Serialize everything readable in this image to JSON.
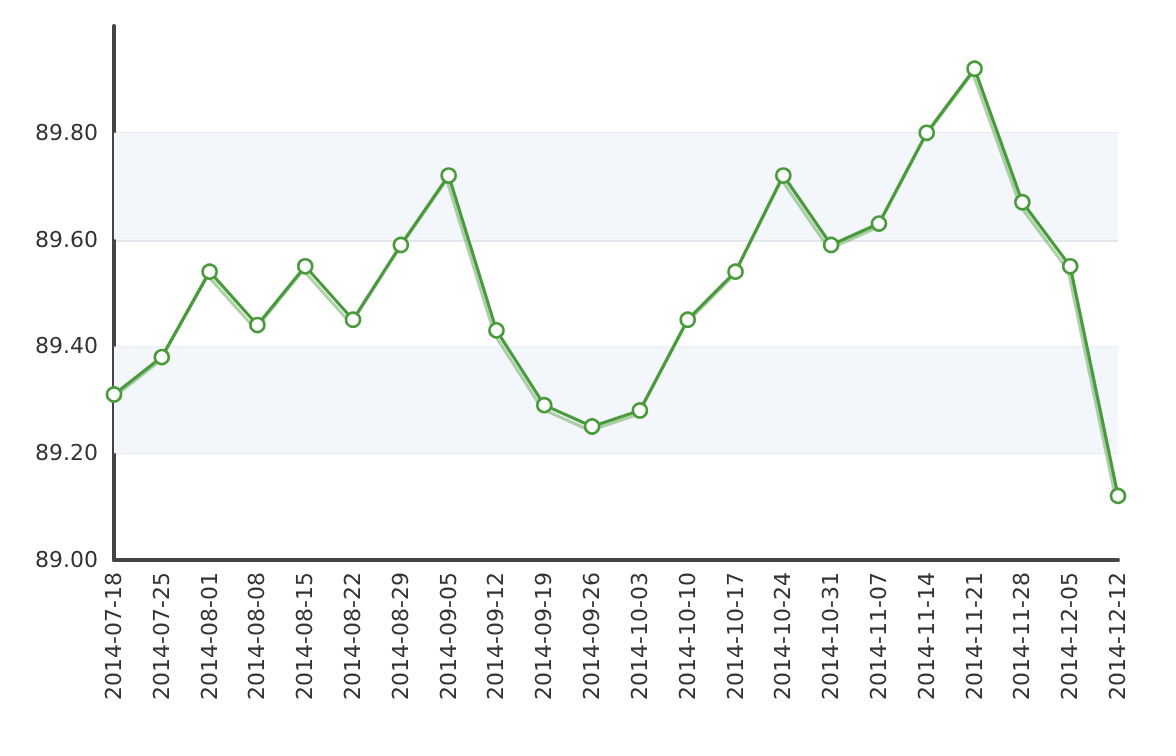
{
  "chart_data": {
    "type": "line",
    "categories": [
      "2014-07-18",
      "2014-07-25",
      "2014-08-01",
      "2014-08-08",
      "2014-08-15",
      "2014-08-22",
      "2014-08-29",
      "2014-09-05",
      "2014-09-12",
      "2014-09-19",
      "2014-09-26",
      "2014-10-03",
      "2014-10-10",
      "2014-10-17",
      "2014-10-24",
      "2014-10-31",
      "2014-11-07",
      "2014-11-14",
      "2014-11-21",
      "2014-11-28",
      "2014-12-05",
      "2014-12-12"
    ],
    "series": [
      {
        "color": "#4a9a3c",
        "values": [
          89.31,
          89.38,
          89.54,
          89.44,
          89.55,
          89.45,
          89.59,
          89.72,
          89.43,
          89.29,
          89.25,
          89.28,
          89.45,
          89.54,
          89.72,
          89.59,
          89.63,
          89.8,
          89.92,
          89.67,
          89.55,
          89.12
        ]
      }
    ],
    "ylim": [
      89,
      90
    ],
    "yticks": [
      {
        "value": 89,
        "label": "89.00"
      },
      {
        "value": 89.2,
        "label": "89.20"
      },
      {
        "value": 89.4,
        "label": "89.40"
      },
      {
        "value": 89.6,
        "label": "89.60"
      },
      {
        "value": 89.8,
        "label": "89.80"
      }
    ],
    "bands": [
      {
        "axis": "y",
        "from": 89.2,
        "to": 89.4,
        "color": "#f3f6fb"
      },
      {
        "axis": "y",
        "from": 89.6,
        "to": 89.8,
        "color": "#f3f6fb"
      }
    ],
    "grid": "y",
    "marker": "circle",
    "line_style": "solid"
  }
}
